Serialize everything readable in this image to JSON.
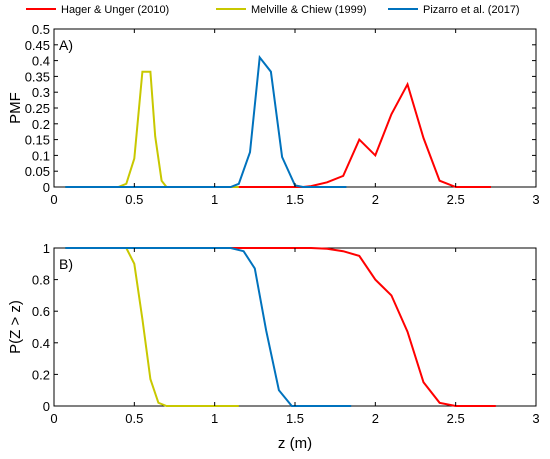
{
  "legend": {
    "placement": "top",
    "entries": [
      {
        "name": "Hager & Unger (2010)",
        "color": "#ff0000"
      },
      {
        "name": "Melville & Chiew (1999)",
        "color": "#c8c800"
      },
      {
        "name": "Pizarro et al. (2017)",
        "color": "#0072bd"
      }
    ]
  },
  "chart_data": [
    {
      "type": "line",
      "panel_label": "A)",
      "xlabel": "",
      "ylabel": "PMF",
      "xlim": [
        0,
        3
      ],
      "ylim": [
        0,
        0.5
      ],
      "xticks": [
        "0",
        "0.5",
        "1",
        "1.5",
        "2",
        "2.5",
        "3"
      ],
      "yticks": [
        "0",
        "0.05",
        "0.1",
        "0.15",
        "0.2",
        "0.25",
        "0.3",
        "0.35",
        "0.4",
        "0.45",
        "0.5"
      ],
      "grid": false,
      "series": [
        {
          "name": "Hager & Unger (2010)",
          "color": "#ff0000",
          "x": [
            0.07,
            1.55,
            1.6,
            1.7,
            1.8,
            1.9,
            2.0,
            2.1,
            2.2,
            2.3,
            2.4,
            2.5,
            2.72
          ],
          "y": [
            0,
            0,
            0.003,
            0.015,
            0.035,
            0.15,
            0.1,
            0.23,
            0.325,
            0.155,
            0.02,
            0,
            0
          ]
        },
        {
          "name": "Melville & Chiew (1999)",
          "color": "#c8c800",
          "x": [
            0.07,
            0.4,
            0.45,
            0.5,
            0.55,
            0.6,
            0.63,
            0.67,
            0.7,
            1.15
          ],
          "y": [
            0,
            0,
            0.01,
            0.09,
            0.365,
            0.365,
            0.16,
            0.02,
            0,
            0
          ]
        },
        {
          "name": "Pizarro et al. (2017)",
          "color": "#0072bd",
          "x": [
            0.07,
            1.1,
            1.15,
            1.22,
            1.28,
            1.35,
            1.42,
            1.5,
            1.55,
            1.82
          ],
          "y": [
            0,
            0,
            0.01,
            0.11,
            0.41,
            0.365,
            0.095,
            0.005,
            0,
            0
          ]
        }
      ]
    },
    {
      "type": "line",
      "panel_label": "B)",
      "xlabel": "z (m)",
      "ylabel": "P(Z > z)",
      "xlim": [
        0,
        3
      ],
      "ylim": [
        0,
        1
      ],
      "xticks": [
        "0",
        "0.5",
        "1",
        "1.5",
        "2",
        "2.5",
        "3"
      ],
      "yticks": [
        "0",
        "0.2",
        "0.4",
        "0.6",
        "0.8",
        "1"
      ],
      "grid": false,
      "series": [
        {
          "name": "Hager & Unger (2010)",
          "color": "#ff0000",
          "x": [
            0.07,
            1.6,
            1.7,
            1.8,
            1.9,
            2.0,
            2.1,
            2.2,
            2.3,
            2.4,
            2.5,
            2.75
          ],
          "y": [
            1,
            1,
            0.995,
            0.98,
            0.95,
            0.8,
            0.7,
            0.47,
            0.15,
            0.02,
            0,
            0
          ]
        },
        {
          "name": "Melville & Chiew (1999)",
          "color": "#c8c800",
          "x": [
            0.07,
            0.45,
            0.5,
            0.55,
            0.6,
            0.65,
            0.7,
            1.15
          ],
          "y": [
            1,
            1,
            0.9,
            0.55,
            0.17,
            0.02,
            0,
            0
          ]
        },
        {
          "name": "Pizarro et al. (2017)",
          "color": "#0072bd",
          "x": [
            0.07,
            1.1,
            1.18,
            1.25,
            1.32,
            1.4,
            1.48,
            1.85
          ],
          "y": [
            1,
            1,
            0.98,
            0.87,
            0.48,
            0.1,
            0,
            0
          ]
        }
      ]
    }
  ]
}
